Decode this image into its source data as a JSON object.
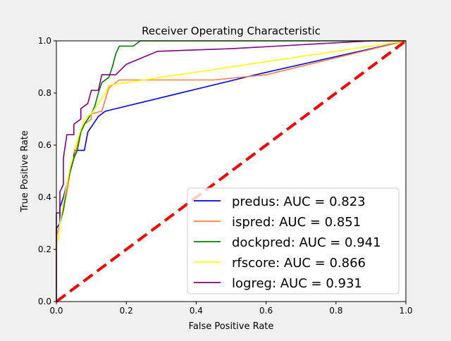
{
  "chart_data": {
    "type": "line",
    "title": "Receiver Operating Characteristic",
    "xlabel": "False Positive Rate",
    "ylabel": "True Positive Rate",
    "xlim": [
      0,
      1
    ],
    "ylim": [
      0,
      1
    ],
    "xticks": [
      "0.0",
      "0.2",
      "0.4",
      "0.6",
      "0.8",
      "1.0"
    ],
    "yticks": [
      "0.0",
      "0.2",
      "0.4",
      "0.6",
      "0.8",
      "1.0"
    ],
    "grid": false,
    "legend_position": "lower-right",
    "series": [
      {
        "name": "predus: AUC = 0.823",
        "color": "#0000ff",
        "points": [
          [
            0,
            0
          ],
          [
            0,
            0.28
          ],
          [
            0.01,
            0.3
          ],
          [
            0.01,
            0.36
          ],
          [
            0.02,
            0.4
          ],
          [
            0.03,
            0.45
          ],
          [
            0.04,
            0.5
          ],
          [
            0.05,
            0.55
          ],
          [
            0.05,
            0.58
          ],
          [
            0.08,
            0.58
          ],
          [
            0.09,
            0.65
          ],
          [
            0.11,
            0.69
          ],
          [
            0.12,
            0.71
          ],
          [
            0.14,
            0.73
          ],
          [
            0.57,
            0.87
          ],
          [
            1,
            1
          ]
        ]
      },
      {
        "name": "ispred: AUC = 0.851",
        "color": "#ff7f3f",
        "points": [
          [
            0,
            0
          ],
          [
            0,
            0.25
          ],
          [
            0.01,
            0.3
          ],
          [
            0.02,
            0.35
          ],
          [
            0.03,
            0.42
          ],
          [
            0.04,
            0.5
          ],
          [
            0.05,
            0.55
          ],
          [
            0.06,
            0.6
          ],
          [
            0.07,
            0.65
          ],
          [
            0.08,
            0.68
          ],
          [
            0.1,
            0.7
          ],
          [
            0.1,
            0.72
          ],
          [
            0.13,
            0.73
          ],
          [
            0.15,
            0.82
          ],
          [
            0.18,
            0.85
          ],
          [
            0.45,
            0.85
          ],
          [
            0.6,
            0.87
          ],
          [
            1,
            1
          ]
        ]
      },
      {
        "name": "dockpred: AUC = 0.941",
        "color": "#008000",
        "points": [
          [
            0,
            0
          ],
          [
            0,
            0.2
          ],
          [
            0.01,
            0.3
          ],
          [
            0.02,
            0.35
          ],
          [
            0.03,
            0.45
          ],
          [
            0.04,
            0.5
          ],
          [
            0.05,
            0.55
          ],
          [
            0.06,
            0.58
          ],
          [
            0.07,
            0.65
          ],
          [
            0.08,
            0.68
          ],
          [
            0.09,
            0.7
          ],
          [
            0.1,
            0.72
          ],
          [
            0.11,
            0.75
          ],
          [
            0.12,
            0.8
          ],
          [
            0.13,
            0.84
          ],
          [
            0.15,
            0.86
          ],
          [
            0.16,
            0.9
          ],
          [
            0.17,
            0.95
          ],
          [
            0.18,
            0.98
          ],
          [
            0.22,
            0.98
          ],
          [
            0.24,
            1
          ],
          [
            1,
            1
          ]
        ]
      },
      {
        "name": "rfscore: AUC = 0.866",
        "color": "#ffff00",
        "points": [
          [
            0,
            0
          ],
          [
            0,
            0.2
          ],
          [
            0.01,
            0.3
          ],
          [
            0.02,
            0.38
          ],
          [
            0.03,
            0.45
          ],
          [
            0.04,
            0.52
          ],
          [
            0.05,
            0.58
          ],
          [
            0.06,
            0.62
          ],
          [
            0.07,
            0.66
          ],
          [
            0.08,
            0.7
          ],
          [
            0.1,
            0.72
          ],
          [
            0.12,
            0.76
          ],
          [
            0.14,
            0.8
          ],
          [
            0.15,
            0.83
          ],
          [
            0.3,
            0.86
          ],
          [
            1,
            1
          ]
        ]
      },
      {
        "name": "logreg: AUC = 0.931",
        "color": "#800080",
        "points": [
          [
            0,
            0
          ],
          [
            0,
            0.34
          ],
          [
            0.01,
            0.34
          ],
          [
            0.01,
            0.42
          ],
          [
            0.02,
            0.45
          ],
          [
            0.02,
            0.55
          ],
          [
            0.03,
            0.64
          ],
          [
            0.05,
            0.64
          ],
          [
            0.05,
            0.68
          ],
          [
            0.07,
            0.7
          ],
          [
            0.07,
            0.74
          ],
          [
            0.09,
            0.76
          ],
          [
            0.1,
            0.81
          ],
          [
            0.12,
            0.81
          ],
          [
            0.13,
            0.87
          ],
          [
            0.17,
            0.87
          ],
          [
            0.2,
            0.91
          ],
          [
            0.29,
            0.96
          ],
          [
            0.5,
            0.97
          ],
          [
            0.9,
            1
          ],
          [
            1,
            1
          ]
        ]
      }
    ],
    "reference_line": {
      "color": "#ff0000",
      "style": "dashed",
      "points": [
        [
          0,
          0
        ],
        [
          1,
          1
        ]
      ]
    }
  }
}
